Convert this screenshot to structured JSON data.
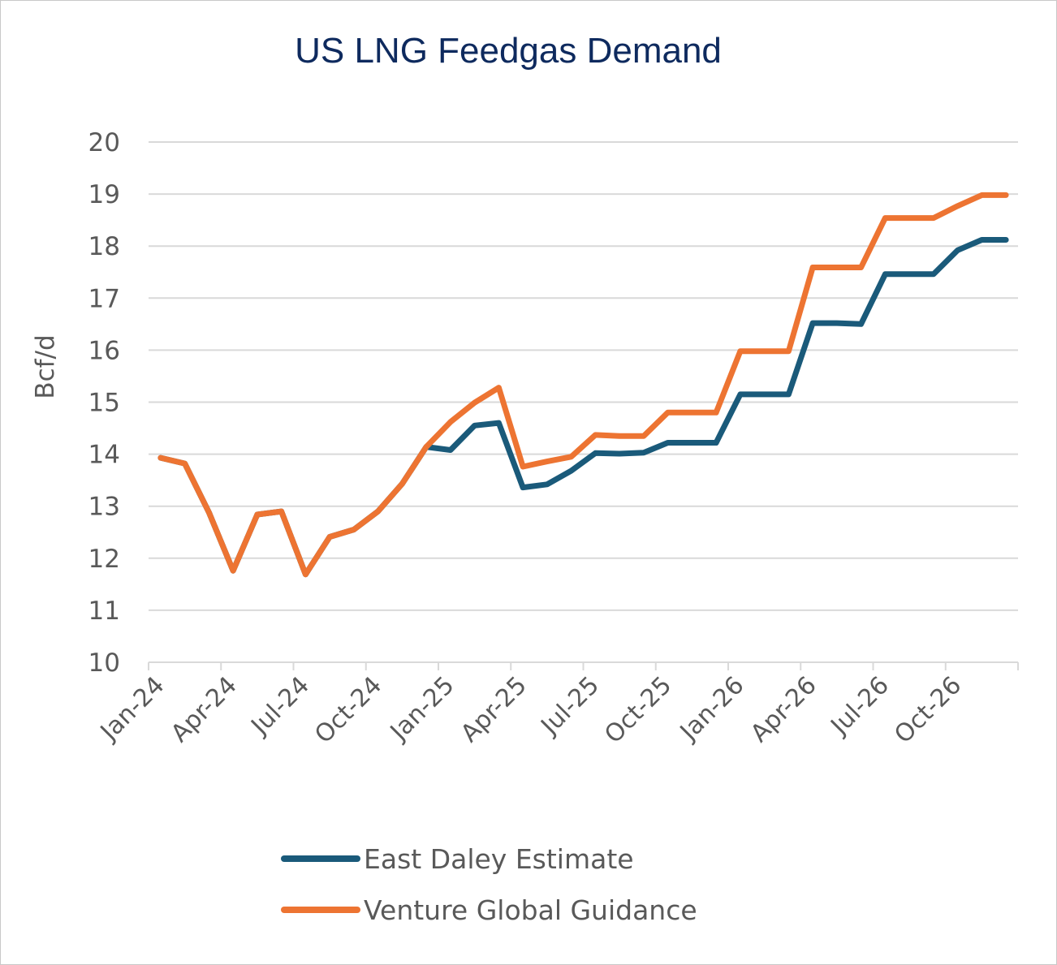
{
  "chart_data": {
    "type": "line",
    "title": "US LNG Feedgas Demand",
    "xlabel": "",
    "ylabel": "Bcf/d",
    "ylim": [
      10,
      20
    ],
    "yticks": [
      "10",
      "11",
      "12",
      "13",
      "14",
      "15",
      "16",
      "17",
      "18",
      "19",
      "20"
    ],
    "x": [
      "Jan-24",
      "Feb-24",
      "Mar-24",
      "Apr-24",
      "May-24",
      "Jun-24",
      "Jul-24",
      "Aug-24",
      "Sep-24",
      "Oct-24",
      "Nov-24",
      "Dec-24",
      "Jan-25",
      "Feb-25",
      "Mar-25",
      "Apr-25",
      "May-25",
      "Jun-25",
      "Jul-25",
      "Aug-25",
      "Sep-25",
      "Oct-25",
      "Nov-25",
      "Dec-25",
      "Jan-26",
      "Feb-26",
      "Mar-26",
      "Apr-26",
      "May-26",
      "Jun-26",
      "Jul-26",
      "Aug-26",
      "Sep-26",
      "Oct-26",
      "Nov-26",
      "Dec-26"
    ],
    "xtick_labels": [
      "Jan-24",
      "Apr-24",
      "Jul-24",
      "Oct-24",
      "Jan-25",
      "Apr-25",
      "Jul-25",
      "Oct-25",
      "Jan-26",
      "Apr-26",
      "Jul-26",
      "Oct-26"
    ],
    "grid": true,
    "legend_position": "bottom",
    "series": [
      {
        "name": "East Daley Estimate",
        "color": "#1a5a7a",
        "values": [
          13.93,
          13.82,
          12.88,
          11.76,
          12.84,
          12.9,
          11.69,
          12.41,
          12.55,
          12.9,
          13.43,
          14.14,
          14.08,
          14.55,
          14.6,
          13.36,
          13.42,
          13.68,
          14.02,
          14.01,
          14.03,
          14.22,
          14.22,
          14.22,
          15.15,
          15.15,
          15.15,
          16.52,
          16.52,
          16.5,
          17.46,
          17.46,
          17.46,
          17.92,
          18.12,
          18.12
        ]
      },
      {
        "name": "Venture Global Guidance",
        "color": "#ed7432",
        "values": [
          13.93,
          13.82,
          12.88,
          11.76,
          12.84,
          12.9,
          11.69,
          12.41,
          12.55,
          12.9,
          13.43,
          14.14,
          14.62,
          14.99,
          15.28,
          13.76,
          13.86,
          13.95,
          14.37,
          14.35,
          14.35,
          14.8,
          14.8,
          14.8,
          15.98,
          15.98,
          15.98,
          17.59,
          17.59,
          17.59,
          18.54,
          18.54,
          18.54,
          18.77,
          18.98,
          18.98
        ]
      }
    ]
  }
}
